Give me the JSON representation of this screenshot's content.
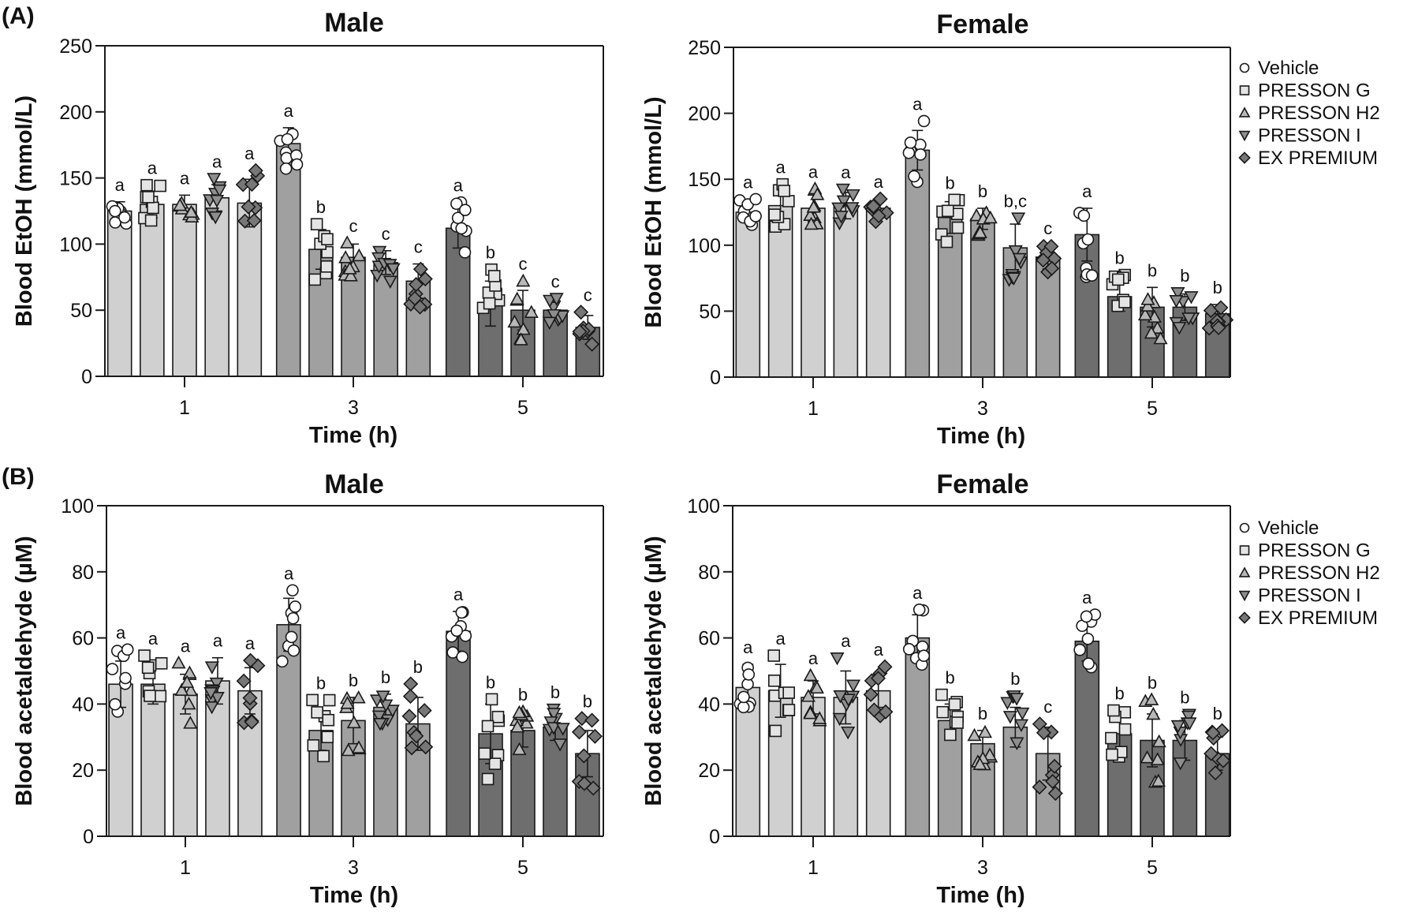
{
  "figure": {
    "legend": [
      {
        "label": "Vehicle",
        "marker": "circle-icon",
        "color": "#ffffff"
      },
      {
        "label": "PRESSON G",
        "marker": "square-icon",
        "color": "#e4e4e4"
      },
      {
        "label": "PRESSON H2",
        "marker": "triangle-up-icon",
        "color": "#b8b8b8"
      },
      {
        "label": "PRESSON I",
        "marker": "triangle-down-icon",
        "color": "#8e8e8e"
      },
      {
        "label": "EX PREMIUM",
        "marker": "diamond-icon",
        "color": "#777777"
      }
    ],
    "time_colors": {
      "1": "#d0d0d0",
      "3": "#a0a0a0",
      "5": "#6e6e6e"
    }
  },
  "chart_data": [
    {
      "type": "bar",
      "panel": "(A)",
      "title": "Male",
      "xlabel": "Time (h)",
      "ylabel": "Blood EtOH (mmol/L)",
      "ylim": [
        0,
        250
      ],
      "yticks": [
        0,
        50,
        100,
        150,
        200,
        250
      ],
      "categories": [
        "1",
        "3",
        "5"
      ],
      "legend": "none",
      "series": [
        {
          "name": "Vehicle",
          "values": [
            125,
            176,
            112
          ],
          "err": [
            7,
            12,
            15
          ],
          "sig": [
            "a",
            "a",
            "a"
          ]
        },
        {
          "name": "PRESSON G",
          "values": [
            130,
            96,
            55
          ],
          "err": [
            10,
            15,
            17
          ],
          "sig": [
            "a",
            "b",
            "b"
          ]
        },
        {
          "name": "PRESSON H2",
          "values": [
            130,
            90,
            50
          ],
          "err": [
            7,
            10,
            15
          ],
          "sig": [
            "a",
            "c",
            "c"
          ]
        },
        {
          "name": "PRESSON I",
          "values": [
            135,
            86,
            50
          ],
          "err": [
            10,
            9,
            7
          ],
          "sig": [
            "a",
            "c",
            "c"
          ]
        },
        {
          "name": "EX PREMIUM",
          "values": [
            131,
            72,
            37
          ],
          "err": [
            18,
            13,
            9
          ],
          "sig": [
            "a",
            "c",
            "c"
          ]
        }
      ]
    },
    {
      "type": "bar",
      "panel": "",
      "title": "Female",
      "xlabel": "Time (h)",
      "ylabel": "Blood EtOH (mmol/L)",
      "ylim": [
        0,
        250
      ],
      "yticks": [
        0,
        50,
        100,
        150,
        200,
        250
      ],
      "categories": [
        "1",
        "3",
        "5"
      ],
      "legend": "right",
      "series": [
        {
          "name": "Vehicle",
          "values": [
            125,
            172,
            108
          ],
          "err": [
            8,
            15,
            20
          ],
          "sig": [
            "a",
            "a",
            "a"
          ]
        },
        {
          "name": "PRESSON G",
          "values": [
            130,
            121,
            61
          ],
          "err": [
            12,
            12,
            11
          ],
          "sig": [
            "a",
            "b",
            "b"
          ]
        },
        {
          "name": "PRESSON H2",
          "values": [
            128,
            120,
            53
          ],
          "err": [
            10,
            8,
            15
          ],
          "sig": [
            "a",
            "b",
            "b"
          ]
        },
        {
          "name": "PRESSON I",
          "values": [
            130,
            98,
            53
          ],
          "err": [
            10,
            18,
            10
          ],
          "sig": [
            "a",
            "b,c",
            "b"
          ]
        },
        {
          "name": "EX PREMIUM",
          "values": [
            128,
            91,
            48
          ],
          "err": [
            7,
            9,
            7
          ],
          "sig": [
            "a",
            "c",
            "b"
          ]
        }
      ]
    },
    {
      "type": "bar",
      "panel": "(B)",
      "title": "Male",
      "xlabel": "Time (h)",
      "ylabel": "Blood acetaldehyde (µM)",
      "ylim": [
        0,
        100
      ],
      "yticks": [
        0,
        20,
        40,
        60,
        80,
        100
      ],
      "categories": [
        "1",
        "3",
        "5"
      ],
      "legend": "none",
      "series": [
        {
          "name": "Vehicle",
          "values": [
            46,
            64,
            62
          ],
          "err": [
            7,
            8,
            6
          ],
          "sig": [
            "a",
            "a",
            "a"
          ]
        },
        {
          "name": "PRESSON G",
          "values": [
            46,
            32,
            31
          ],
          "err": [
            6,
            6,
            9
          ],
          "sig": [
            "a",
            "b",
            "b"
          ]
        },
        {
          "name": "PRESSON H2",
          "values": [
            43,
            35,
            32
          ],
          "err": [
            6,
            7,
            5
          ],
          "sig": [
            "a",
            "b",
            "b"
          ]
        },
        {
          "name": "PRESSON I",
          "values": [
            47,
            39,
            33
          ],
          "err": [
            7,
            4,
            4
          ],
          "sig": [
            "a",
            "b",
            "b"
          ]
        },
        {
          "name": "EX PREMIUM",
          "values": [
            44,
            34,
            25
          ],
          "err": [
            7,
            8,
            7
          ],
          "sig": [
            "a",
            "b",
            "b"
          ]
        }
      ]
    },
    {
      "type": "bar",
      "panel": "",
      "title": "Female",
      "xlabel": "Time (h)",
      "ylabel": "Blood acetaldehyde (µM)",
      "ylim": [
        0,
        100
      ],
      "yticks": [
        0,
        20,
        40,
        60,
        80,
        100
      ],
      "categories": [
        "1",
        "3",
        "5"
      ],
      "legend": "right",
      "series": [
        {
          "name": "Vehicle",
          "values": [
            45,
            60,
            59
          ],
          "err": [
            7,
            7,
            6
          ],
          "sig": [
            "a",
            "a",
            "a"
          ]
        },
        {
          "name": "PRESSON G",
          "values": [
            44,
            35,
            31
          ],
          "err": [
            8,
            5,
            5
          ],
          "sig": [
            "a",
            "b",
            "b"
          ]
        },
        {
          "name": "PRESSON H2",
          "values": [
            42,
            28,
            29
          ],
          "err": [
            5,
            4,
            8
          ],
          "sig": [
            "a",
            "b",
            "b"
          ]
        },
        {
          "name": "PRESSON I",
          "values": [
            42,
            33,
            29
          ],
          "err": [
            8,
            6,
            6
          ],
          "sig": [
            "a",
            "b",
            "b"
          ]
        },
        {
          "name": "EX PREMIUM",
          "values": [
            44,
            25,
            25
          ],
          "err": [
            5,
            8,
            5
          ],
          "sig": [
            "a",
            "c",
            "b"
          ]
        }
      ]
    }
  ]
}
